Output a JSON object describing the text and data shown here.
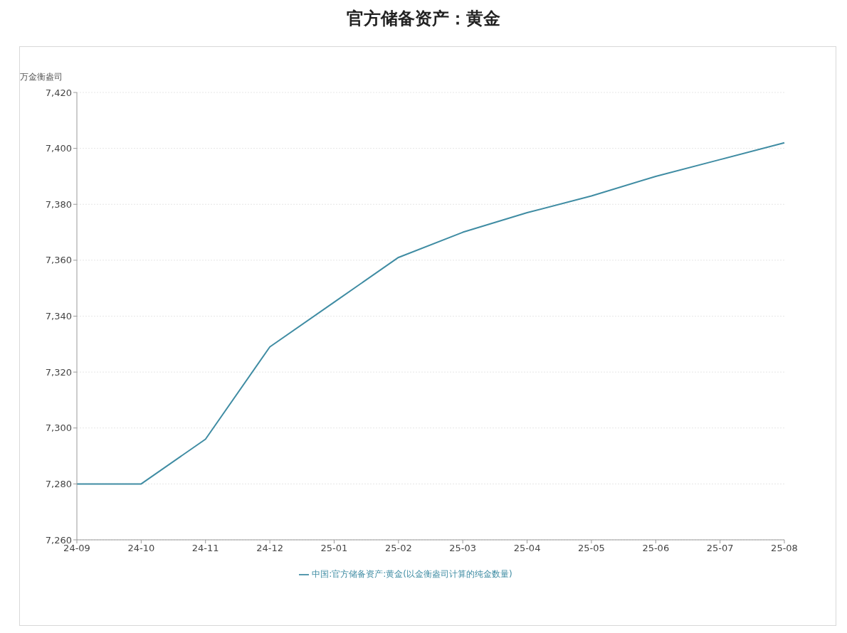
{
  "chart_data": {
    "type": "line",
    "title": "官方储备资产：黄金",
    "ylabel": "万金衡盎司",
    "categories": [
      "24-09",
      "24-10",
      "24-11",
      "24-12",
      "25-01",
      "25-02",
      "25-03",
      "25-04",
      "25-05",
      "25-06",
      "25-07",
      "25-08"
    ],
    "series": [
      {
        "name": "中国:官方储备资产:黄金(以金衡盎司计算的纯金数量)",
        "color": "#3f8ca3",
        "values": [
          7280,
          7280,
          7296,
          7329,
          7345,
          7361,
          7370,
          7377,
          7383,
          7390,
          7396,
          7402
        ]
      }
    ],
    "ylim": [
      7260,
      7420
    ],
    "yticks": [
      {
        "value": 7260,
        "label": "7,260"
      },
      {
        "value": 7280,
        "label": "7,280"
      },
      {
        "value": 7300,
        "label": "7,300"
      },
      {
        "value": 7320,
        "label": "7,320"
      },
      {
        "value": 7340,
        "label": "7,340"
      },
      {
        "value": 7360,
        "label": "7,360"
      },
      {
        "value": 7380,
        "label": "7,380"
      },
      {
        "value": 7400,
        "label": "7,400"
      },
      {
        "value": 7420,
        "label": "7,420"
      }
    ],
    "grid": "y",
    "legend": "bottom",
    "marker": "none",
    "line_style": "solid"
  }
}
